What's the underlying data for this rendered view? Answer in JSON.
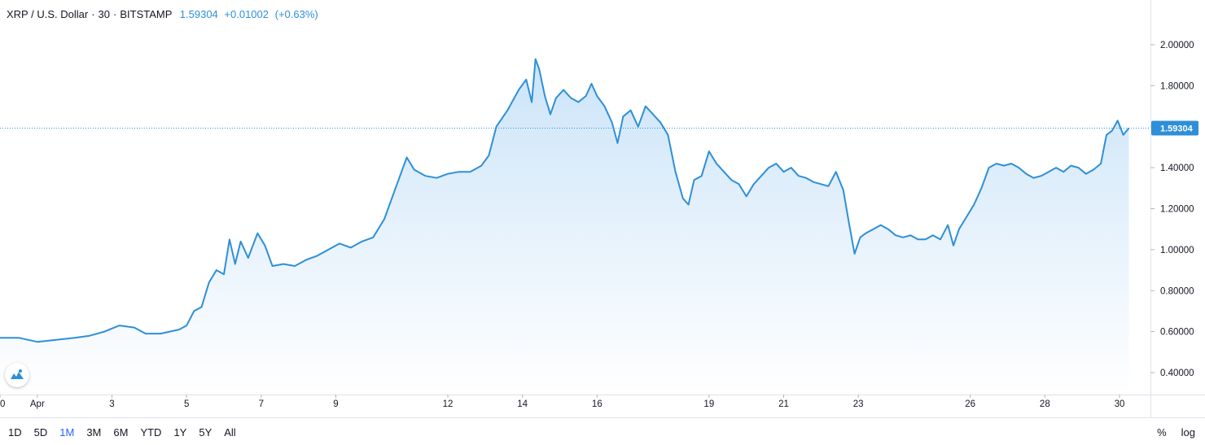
{
  "legend": {
    "symbol": "XRP / U.S. Dollar",
    "interval": "30",
    "exchange": "BITSTAMP",
    "last": "1.59304",
    "change": "+0.01002",
    "change_pct": "(+0.63%)"
  },
  "toolbar": {
    "ranges": [
      "1D",
      "5D",
      "1M",
      "3M",
      "6M",
      "YTD",
      "1Y",
      "5Y",
      "All"
    ],
    "active_range": "1M",
    "percent_label": "%",
    "log_label": "log"
  },
  "colors": {
    "line": "#2e8fd8",
    "fill_top": "#c8e2f8",
    "fill_bottom": "#ffffff",
    "price_label_bg": "#2e8fd8",
    "axis_border": "#e0e3eb"
  },
  "chart_data": {
    "type": "area",
    "y_axis_ticks": [
      "2.00000",
      "1.80000",
      "1.60000",
      "1.40000",
      "1.20000",
      "1.00000",
      "0.80000",
      "0.60000",
      "0.40000"
    ],
    "ylim": [
      0.4,
      2.0
    ],
    "x_axis_ticks": [
      {
        "label": "0",
        "day": 0
      },
      {
        "label": "Apr",
        "day": 1
      },
      {
        "label": "3",
        "day": 3
      },
      {
        "label": "5",
        "day": 5
      },
      {
        "label": "7",
        "day": 7
      },
      {
        "label": "9",
        "day": 9
      },
      {
        "label": "12",
        "day": 12
      },
      {
        "label": "14",
        "day": 14
      },
      {
        "label": "16",
        "day": 16
      },
      {
        "label": "19",
        "day": 19
      },
      {
        "label": "21",
        "day": 21
      },
      {
        "label": "23",
        "day": 23
      },
      {
        "label": "26",
        "day": 26
      },
      {
        "label": "28",
        "day": 28
      },
      {
        "label": "30",
        "day": 30
      }
    ],
    "last_price": 1.59304,
    "last_price_label": "1.59304",
    "series": [
      {
        "points": [
          [
            0.0,
            0.57
          ],
          [
            0.5,
            0.57
          ],
          [
            1.0,
            0.55
          ],
          [
            1.5,
            0.56
          ],
          [
            2.0,
            0.57
          ],
          [
            2.4,
            0.58
          ],
          [
            2.8,
            0.6
          ],
          [
            3.2,
            0.63
          ],
          [
            3.6,
            0.62
          ],
          [
            3.9,
            0.59
          ],
          [
            4.3,
            0.59
          ],
          [
            4.8,
            0.61
          ],
          [
            5.0,
            0.63
          ],
          [
            5.2,
            0.7
          ],
          [
            5.4,
            0.72
          ],
          [
            5.6,
            0.84
          ],
          [
            5.8,
            0.9
          ],
          [
            6.0,
            0.88
          ],
          [
            6.15,
            1.05
          ],
          [
            6.3,
            0.93
          ],
          [
            6.45,
            1.04
          ],
          [
            6.65,
            0.96
          ],
          [
            6.9,
            1.08
          ],
          [
            7.1,
            1.02
          ],
          [
            7.3,
            0.92
          ],
          [
            7.6,
            0.93
          ],
          [
            7.9,
            0.92
          ],
          [
            8.2,
            0.95
          ],
          [
            8.5,
            0.97
          ],
          [
            8.8,
            1.0
          ],
          [
            9.1,
            1.03
          ],
          [
            9.4,
            1.01
          ],
          [
            9.7,
            1.04
          ],
          [
            10.0,
            1.06
          ],
          [
            10.3,
            1.15
          ],
          [
            10.6,
            1.3
          ],
          [
            10.9,
            1.45
          ],
          [
            11.1,
            1.39
          ],
          [
            11.4,
            1.36
          ],
          [
            11.7,
            1.35
          ],
          [
            12.0,
            1.37
          ],
          [
            12.3,
            1.38
          ],
          [
            12.6,
            1.38
          ],
          [
            12.9,
            1.41
          ],
          [
            13.1,
            1.46
          ],
          [
            13.3,
            1.6
          ],
          [
            13.6,
            1.68
          ],
          [
            13.9,
            1.78
          ],
          [
            14.1,
            1.83
          ],
          [
            14.25,
            1.72
          ],
          [
            14.35,
            1.93
          ],
          [
            14.45,
            1.88
          ],
          [
            14.6,
            1.75
          ],
          [
            14.75,
            1.66
          ],
          [
            14.9,
            1.74
          ],
          [
            15.1,
            1.78
          ],
          [
            15.3,
            1.74
          ],
          [
            15.5,
            1.72
          ],
          [
            15.7,
            1.75
          ],
          [
            15.85,
            1.81
          ],
          [
            16.0,
            1.75
          ],
          [
            16.2,
            1.7
          ],
          [
            16.4,
            1.62
          ],
          [
            16.55,
            1.52
          ],
          [
            16.7,
            1.65
          ],
          [
            16.9,
            1.68
          ],
          [
            17.1,
            1.6
          ],
          [
            17.3,
            1.7
          ],
          [
            17.5,
            1.66
          ],
          [
            17.7,
            1.62
          ],
          [
            17.9,
            1.56
          ],
          [
            18.1,
            1.38
          ],
          [
            18.3,
            1.25
          ],
          [
            18.45,
            1.22
          ],
          [
            18.6,
            1.34
          ],
          [
            18.8,
            1.36
          ],
          [
            19.0,
            1.48
          ],
          [
            19.2,
            1.42
          ],
          [
            19.4,
            1.38
          ],
          [
            19.6,
            1.34
          ],
          [
            19.8,
            1.32
          ],
          [
            20.0,
            1.26
          ],
          [
            20.2,
            1.32
          ],
          [
            20.4,
            1.36
          ],
          [
            20.6,
            1.4
          ],
          [
            20.8,
            1.42
          ],
          [
            21.0,
            1.38
          ],
          [
            21.2,
            1.4
          ],
          [
            21.4,
            1.36
          ],
          [
            21.6,
            1.35
          ],
          [
            21.8,
            1.33
          ],
          [
            22.0,
            1.32
          ],
          [
            22.2,
            1.31
          ],
          [
            22.4,
            1.38
          ],
          [
            22.6,
            1.29
          ],
          [
            22.75,
            1.13
          ],
          [
            22.9,
            0.98
          ],
          [
            23.05,
            1.06
          ],
          [
            23.2,
            1.08
          ],
          [
            23.4,
            1.1
          ],
          [
            23.6,
            1.12
          ],
          [
            23.8,
            1.1
          ],
          [
            24.0,
            1.07
          ],
          [
            24.2,
            1.06
          ],
          [
            24.4,
            1.07
          ],
          [
            24.6,
            1.05
          ],
          [
            24.8,
            1.05
          ],
          [
            25.0,
            1.07
          ],
          [
            25.2,
            1.05
          ],
          [
            25.4,
            1.12
          ],
          [
            25.55,
            1.02
          ],
          [
            25.7,
            1.1
          ],
          [
            25.9,
            1.16
          ],
          [
            26.1,
            1.22
          ],
          [
            26.3,
            1.3
          ],
          [
            26.5,
            1.4
          ],
          [
            26.7,
            1.42
          ],
          [
            26.9,
            1.41
          ],
          [
            27.1,
            1.42
          ],
          [
            27.3,
            1.4
          ],
          [
            27.5,
            1.37
          ],
          [
            27.7,
            1.35
          ],
          [
            27.9,
            1.36
          ],
          [
            28.1,
            1.38
          ],
          [
            28.3,
            1.4
          ],
          [
            28.5,
            1.38
          ],
          [
            28.7,
            1.41
          ],
          [
            28.9,
            1.4
          ],
          [
            29.1,
            1.37
          ],
          [
            29.3,
            1.39
          ],
          [
            29.5,
            1.42
          ],
          [
            29.65,
            1.56
          ],
          [
            29.8,
            1.58
          ],
          [
            29.95,
            1.63
          ],
          [
            30.1,
            1.56
          ],
          [
            30.25,
            1.59304
          ]
        ]
      }
    ]
  }
}
